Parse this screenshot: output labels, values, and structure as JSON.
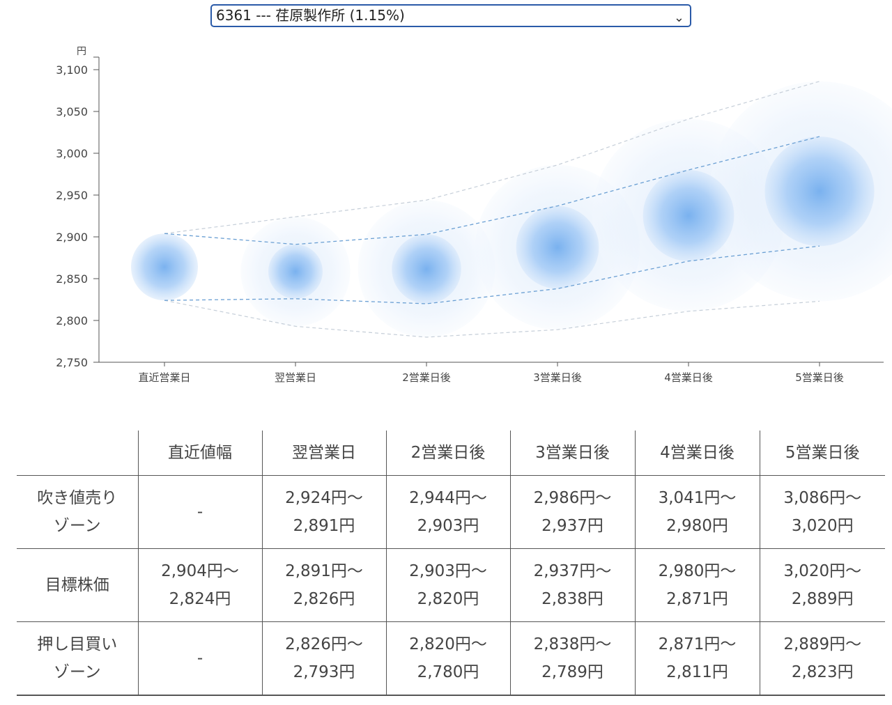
{
  "selector": {
    "selected": "6361 --- 荏原製作所 (1.15%)",
    "chevron_icon": "chevron-down-icon"
  },
  "chart_data": {
    "type": "scatter",
    "ylabel_unit": "円",
    "ylim": [
      2750,
      3100
    ],
    "yticks": [
      2750,
      2800,
      2850,
      2900,
      2950,
      3000,
      3050,
      3100
    ],
    "ytick_labels": [
      "2,750",
      "2,800",
      "2,850",
      "2,900",
      "2,950",
      "3,000",
      "3,050",
      "3,100"
    ],
    "categories": [
      "直近営業日",
      "翌営業日",
      "2営業日後",
      "3営業日後",
      "4営業日後",
      "5営業日後"
    ],
    "target_high": [
      2904,
      2891,
      2903,
      2937,
      2980,
      3020
    ],
    "target_low": [
      2824,
      2826,
      2820,
      2838,
      2871,
      2889
    ],
    "outer_high": [
      null,
      2924,
      2944,
      2986,
      3041,
      3086
    ],
    "outer_low": [
      null,
      2793,
      2780,
      2789,
      2811,
      2823
    ],
    "colors": {
      "bubble": "#5b9de8",
      "target_line": "#6a9fd3",
      "outer_line": "#c5ced8",
      "axis": "#555555"
    }
  },
  "table": {
    "headers": [
      "",
      "直近値幅",
      "翌営業日",
      "2営業日後",
      "3営業日後",
      "4営業日後",
      "5営業日後"
    ],
    "rows": [
      {
        "label": [
          "吹き値売り",
          "ゾーン"
        ],
        "cells": [
          [
            "-"
          ],
          [
            "2,924円〜",
            "2,891円"
          ],
          [
            "2,944円〜",
            "2,903円"
          ],
          [
            "2,986円〜",
            "2,937円"
          ],
          [
            "3,041円〜",
            "2,980円"
          ],
          [
            "3,086円〜",
            "3,020円"
          ]
        ]
      },
      {
        "label": [
          "目標株価"
        ],
        "cells": [
          [
            "2,904円〜",
            "2,824円"
          ],
          [
            "2,891円〜",
            "2,826円"
          ],
          [
            "2,903円〜",
            "2,820円"
          ],
          [
            "2,937円〜",
            "2,838円"
          ],
          [
            "2,980円〜",
            "2,871円"
          ],
          [
            "3,020円〜",
            "2,889円"
          ]
        ]
      },
      {
        "label": [
          "押し目買い",
          "ゾーン"
        ],
        "cells": [
          [
            "-"
          ],
          [
            "2,826円〜",
            "2,793円"
          ],
          [
            "2,820円〜",
            "2,780円"
          ],
          [
            "2,838円〜",
            "2,789円"
          ],
          [
            "2,871円〜",
            "2,811円"
          ],
          [
            "2,889円〜",
            "2,823円"
          ]
        ]
      }
    ]
  }
}
